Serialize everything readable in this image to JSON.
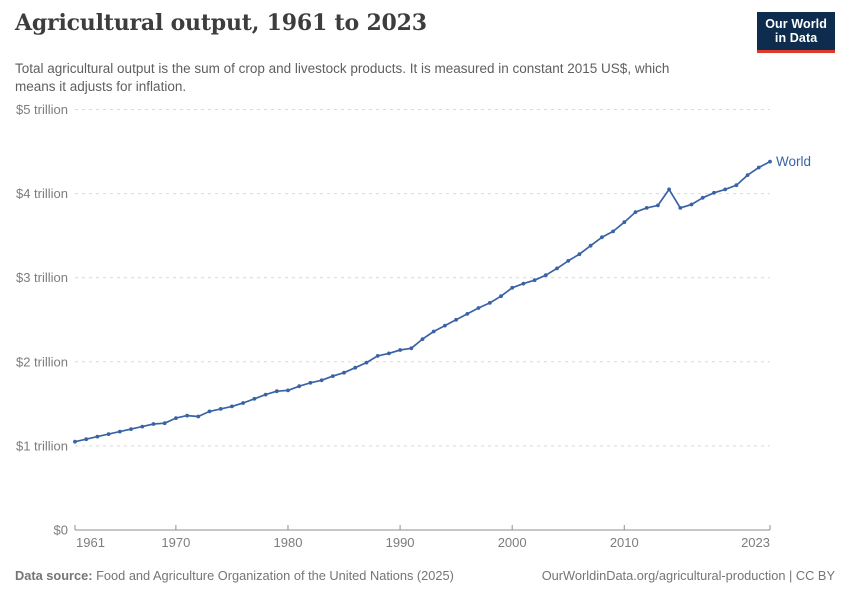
{
  "header": {
    "title": "Agricultural output, 1961 to 2023",
    "subtitle_line1": "Total agricultural output is the sum of crop and livestock products. It is measured in constant 2015 US$, which",
    "subtitle_line2": "means it adjusts for inflation.",
    "logo": {
      "line1": "Our World",
      "line2": "in Data",
      "bg_color": "#0e2d4e",
      "accent_color": "#dc3a2d"
    }
  },
  "chart_data": {
    "type": "line",
    "title": "Agricultural output, 1961 to 2023",
    "xlabel": "",
    "ylabel": "",
    "xlim": [
      1961,
      2023
    ],
    "ylim": [
      0,
      5
    ],
    "grid": "horizontal-dashed",
    "legend_position": "end-of-line",
    "x_ticks": [
      1961,
      1970,
      1980,
      1990,
      2000,
      2010,
      2023
    ],
    "y_ticks": [
      {
        "value": 0,
        "label": "$0"
      },
      {
        "value": 1,
        "label": "$1 trillion"
      },
      {
        "value": 2,
        "label": "$2 trillion"
      },
      {
        "value": 3,
        "label": "$3 trillion"
      },
      {
        "value": 4,
        "label": "$4 trillion"
      },
      {
        "value": 5,
        "label": "$5 trillion"
      }
    ],
    "colors": {
      "line": "#3a63a5",
      "grid": "#d9d9d9",
      "axis": "#8f8f8f",
      "tick_label": "#7d7d7d"
    },
    "series": [
      {
        "name": "World",
        "color": "#3a63a5",
        "x": [
          1961,
          1962,
          1963,
          1964,
          1965,
          1966,
          1967,
          1968,
          1969,
          1970,
          1971,
          1972,
          1973,
          1974,
          1975,
          1976,
          1977,
          1978,
          1979,
          1980,
          1981,
          1982,
          1983,
          1984,
          1985,
          1986,
          1987,
          1988,
          1989,
          1990,
          1991,
          1992,
          1993,
          1994,
          1995,
          1996,
          1997,
          1998,
          1999,
          2000,
          2001,
          2002,
          2003,
          2004,
          2005,
          2006,
          2007,
          2008,
          2009,
          2010,
          2011,
          2012,
          2013,
          2014,
          2015,
          2016,
          2017,
          2018,
          2019,
          2020,
          2021,
          2022,
          2023
        ],
        "values": [
          1.05,
          1.08,
          1.11,
          1.14,
          1.17,
          1.2,
          1.23,
          1.26,
          1.27,
          1.33,
          1.36,
          1.35,
          1.41,
          1.44,
          1.47,
          1.51,
          1.56,
          1.61,
          1.65,
          1.66,
          1.71,
          1.75,
          1.78,
          1.83,
          1.87,
          1.93,
          1.99,
          2.07,
          2.1,
          2.14,
          2.16,
          2.27,
          2.36,
          2.43,
          2.5,
          2.57,
          2.64,
          2.7,
          2.78,
          2.88,
          2.93,
          2.97,
          3.03,
          3.11,
          3.2,
          3.28,
          3.38,
          3.48,
          3.55,
          3.66,
          3.78,
          3.83,
          3.86,
          4.05,
          3.83,
          3.87,
          3.95,
          4.01,
          4.05,
          4.1,
          4.22,
          4.31,
          4.38
        ]
      }
    ]
  },
  "footer": {
    "source_label": "Data source:",
    "source_text": "Food and Agriculture Organization of the United Nations (2025)",
    "credit": "OurWorldinData.org/agricultural-production | CC BY"
  }
}
